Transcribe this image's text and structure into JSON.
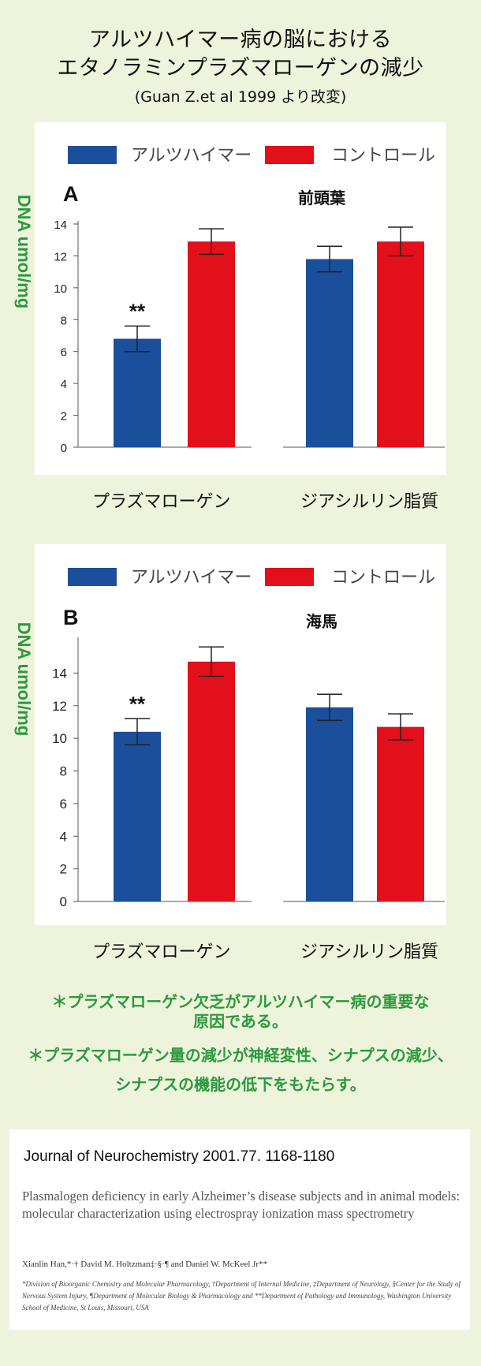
{
  "header": {
    "title_line1": "アルツハイマー病の脳における",
    "title_line2": "エタノラミンプラズマローゲンの減少",
    "source_note": "(Guan Z.et al 1999 より改変)"
  },
  "legend": {
    "alz": "アルツハイマー",
    "control": "コントロール"
  },
  "colors": {
    "alz": "#1b4f9c",
    "control": "#e3101b",
    "accent_green": "#2a9a3c",
    "background": "#eef3dc"
  },
  "chart_data": [
    {
      "type": "bar",
      "panel_label": "A",
      "region": "前頭葉",
      "ylabel": "DNA umol/mg",
      "ylim": [
        0,
        14
      ],
      "yticks": [
        0,
        2,
        4,
        6,
        8,
        10,
        12,
        14
      ],
      "categories": [
        "プラズマローゲン",
        "ジアシルリン脂質"
      ],
      "series": [
        {
          "name": "アルツハイマー",
          "values": [
            6.8,
            11.8
          ],
          "errors": [
            0.8,
            0.8
          ]
        },
        {
          "name": "コントロール",
          "values": [
            12.9,
            12.9
          ],
          "errors": [
            0.8,
            0.9
          ]
        }
      ],
      "annotations": [
        "**"
      ]
    },
    {
      "type": "bar",
      "panel_label": "B",
      "region": "海馬",
      "ylabel": "DNA umol/mg",
      "ylim": [
        0,
        16
      ],
      "yticks": [
        0,
        2,
        4,
        6,
        8,
        10,
        12,
        14
      ],
      "categories": [
        "プラズマローゲン",
        "ジアシルリン脂質"
      ],
      "series": [
        {
          "name": "アルツハイマー",
          "values": [
            10.4,
            11.9
          ],
          "errors": [
            0.8,
            0.8
          ]
        },
        {
          "name": "コントロール",
          "values": [
            14.7,
            10.7
          ],
          "errors": [
            0.9,
            0.8
          ]
        }
      ],
      "annotations": [
        "**"
      ]
    }
  ],
  "notes": {
    "line1a": "＊プラズマローゲン欠乏がアルツハイマー病の重要な",
    "line1b": "原因である。",
    "line2a": "＊プラズマローゲン量の減少が神経変性、シナプスの減少、",
    "line2b": "シナプスの機能の低下をもたらす。"
  },
  "reference": {
    "journal": "Journal of Neurochemistry 2001.77. 1168-1180",
    "title": "Plasmalogen deficiency in early Alzheimer’s disease subjects and in animal models: molecular characterization using electrospray ionization mass spectrometry",
    "authors": "Xianlin Han,*·† David M. Holtzman‡·§·¶ and Daniel W. McKeel Jr**",
    "affiliations": "*Division of Bioorganic Chemistry and Molecular Pharmacology, †Department of Internal Medicine, ‡Department of Neurology, §Center for the Study of Nervous System Injury, ¶Department of Molecular Biology & Pharmacology and **Department of Pathology and Immunology, Washington University School of Medicine, St Louis, Missouri, USA"
  }
}
